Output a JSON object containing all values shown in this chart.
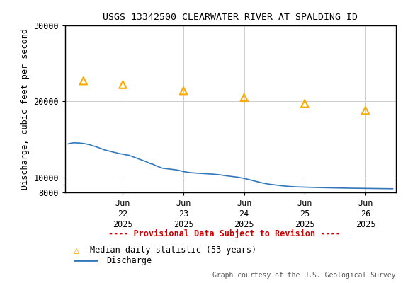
{
  "title": "USGS 13342500 CLEARWATER RIVER AT SPALDING ID",
  "ylabel": "Discharge, cubic feet per second",
  "xlabel_ticks": [
    "Jun\n22\n2025",
    "Jun\n23\n2025",
    "Jun\n24\n2025",
    "Jun\n25\n2025",
    "Jun\n26\n2025"
  ],
  "x_tick_positions": [
    1.0,
    2.0,
    3.0,
    4.0,
    5.0
  ],
  "ylim": [
    8000,
    30000
  ],
  "yticks": [
    8000,
    9000,
    10000,
    20000,
    30000
  ],
  "ytick_labels": [
    "8000",
    "",
    "10000",
    "20000",
    "30000"
  ],
  "background_color": "#ffffff",
  "plot_bg_color": "#ffffff",
  "grid_color": "#cccccc",
  "title_fontsize": 9.5,
  "axis_label_fontsize": 8.5,
  "tick_fontsize": 8.5,
  "provisional_text": "---- Provisional Data Subject to Revision ----",
  "provisional_color": "#cc0000",
  "credit_text": "Graph courtesy of the U.S. Geological Survey",
  "legend_triangle_label": "Median daily statistic (53 years)",
  "legend_line_label": "Discharge",
  "triangle_color": "#ffaa00",
  "discharge_color": "#3377bb",
  "median_x": [
    0.35,
    1.0,
    2.0,
    3.0,
    4.0,
    5.0
  ],
  "median_y": [
    22700,
    22200,
    21400,
    20500,
    19700,
    18800
  ],
  "discharge_data": [
    [
      0.1,
      14400
    ],
    [
      0.15,
      14500
    ],
    [
      0.2,
      14550
    ],
    [
      0.25,
      14520
    ],
    [
      0.3,
      14500
    ],
    [
      0.35,
      14450
    ],
    [
      0.4,
      14380
    ],
    [
      0.45,
      14300
    ],
    [
      0.5,
      14150
    ],
    [
      0.55,
      14050
    ],
    [
      0.6,
      13900
    ],
    [
      0.65,
      13750
    ],
    [
      0.7,
      13600
    ],
    [
      0.75,
      13500
    ],
    [
      0.8,
      13400
    ],
    [
      0.85,
      13300
    ],
    [
      0.9,
      13200
    ],
    [
      0.95,
      13100
    ],
    [
      1.0,
      13050
    ],
    [
      1.05,
      12950
    ],
    [
      1.1,
      12900
    ],
    [
      1.15,
      12750
    ],
    [
      1.2,
      12600
    ],
    [
      1.25,
      12450
    ],
    [
      1.3,
      12300
    ],
    [
      1.35,
      12150
    ],
    [
      1.4,
      12000
    ],
    [
      1.45,
      11800
    ],
    [
      1.5,
      11700
    ],
    [
      1.55,
      11500
    ],
    [
      1.6,
      11350
    ],
    [
      1.65,
      11200
    ],
    [
      1.7,
      11150
    ],
    [
      1.75,
      11100
    ],
    [
      1.8,
      11050
    ],
    [
      1.85,
      11000
    ],
    [
      1.9,
      10950
    ],
    [
      1.95,
      10850
    ],
    [
      2.0,
      10750
    ],
    [
      2.05,
      10680
    ],
    [
      2.1,
      10620
    ],
    [
      2.15,
      10580
    ],
    [
      2.2,
      10550
    ],
    [
      2.3,
      10500
    ],
    [
      2.4,
      10450
    ],
    [
      2.5,
      10400
    ],
    [
      2.6,
      10320
    ],
    [
      2.7,
      10200
    ],
    [
      2.8,
      10100
    ],
    [
      2.9,
      10000
    ],
    [
      3.0,
      9850
    ],
    [
      3.1,
      9650
    ],
    [
      3.2,
      9450
    ],
    [
      3.3,
      9250
    ],
    [
      3.4,
      9100
    ],
    [
      3.5,
      9000
    ],
    [
      3.6,
      8900
    ],
    [
      3.7,
      8820
    ],
    [
      3.8,
      8760
    ],
    [
      3.9,
      8720
    ],
    [
      4.0,
      8700
    ],
    [
      4.1,
      8670
    ],
    [
      4.2,
      8650
    ],
    [
      4.3,
      8630
    ],
    [
      4.4,
      8610
    ],
    [
      4.5,
      8595
    ],
    [
      4.6,
      8580
    ],
    [
      4.7,
      8565
    ],
    [
      4.8,
      8550
    ],
    [
      4.9,
      8540
    ],
    [
      5.0,
      8530
    ],
    [
      5.1,
      8520
    ],
    [
      5.2,
      8510
    ],
    [
      5.3,
      8500
    ],
    [
      5.4,
      8490
    ],
    [
      5.45,
      8485
    ]
  ]
}
